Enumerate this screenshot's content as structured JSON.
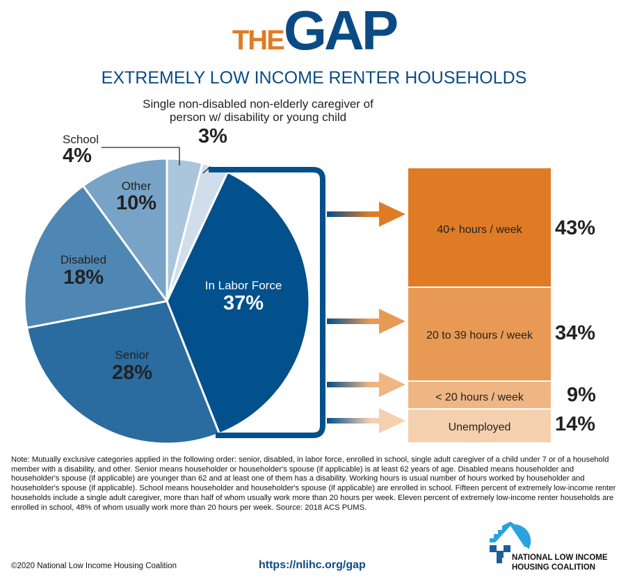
{
  "header": {
    "brand_the": "THE",
    "brand_gap": "GAP",
    "subtitle": "EXTREMELY LOW INCOME RENTER HOUSEHOLDS"
  },
  "chart_data": [
    {
      "type": "pie",
      "start": "top",
      "direction": "clockwise",
      "slices": [
        {
          "label": "School",
          "value": 4,
          "display": "4%",
          "color": "#a9c6dc"
        },
        {
          "label": "Single non-disabled non-elderly caregiver of person w/ disability or young child",
          "value": 3,
          "display": "3%",
          "color": "#d0deeb"
        },
        {
          "label": "In Labor Force",
          "value": 37,
          "display": "37%",
          "color": "#02508c"
        },
        {
          "label": "Senior",
          "value": 28,
          "display": "28%",
          "color": "#2a6c9f"
        },
        {
          "label": "Disabled",
          "value": 18,
          "display": "18%",
          "color": "#4f87b4"
        },
        {
          "label": "Other",
          "value": 10,
          "display": "10%",
          "color": "#78a3c7"
        }
      ]
    },
    {
      "type": "bar",
      "orientation": "stacked-vertical",
      "parent": "In Labor Force",
      "categories": [
        "40+ hours / week",
        "20 to 39 hours / week",
        "< 20 hours / week",
        "Unemployed"
      ],
      "values": [
        43,
        34,
        9,
        14
      ],
      "displays": [
        "43%",
        "34%",
        "9%",
        "14%"
      ],
      "colors": [
        "#e07b25",
        "#e89a54",
        "#efb683",
        "#f5d0af"
      ]
    }
  ],
  "footer": {
    "note": "Note: Mutually exclusive categories applied in the following order: senior, disabled, in labor force, enrolled in school, single adult caregiver of a child under 7 or of a household member with a disability, and other. Senior means householder or householder's spouse (if applicable) is at least 62 years of age. Disabled means householder and householder's spouse (if applicable) are younger than 62 and at least one of them has a disability. Working hours is usual number of hours worked by householder and householder's spouse (if applicable). School means householder and householder's spouse (if applicable) are enrolled in school. Fifteen percent of extremely low-income renter households include a single adult caregiver, more than half of whom usually work more than 20 hours per week. Eleven percent of extremely low-income renter households are enrolled in school, 48% of whom usually work more than 20 hours per week. Source: 2018 ACS PUMS.",
    "copyright": "©2020 National Low Income Housing Coalition",
    "url": "https://nlihc.org/gap",
    "org_line1": "NATIONAL LOW INCOME",
    "org_line2": "HOUSING COALITION"
  }
}
